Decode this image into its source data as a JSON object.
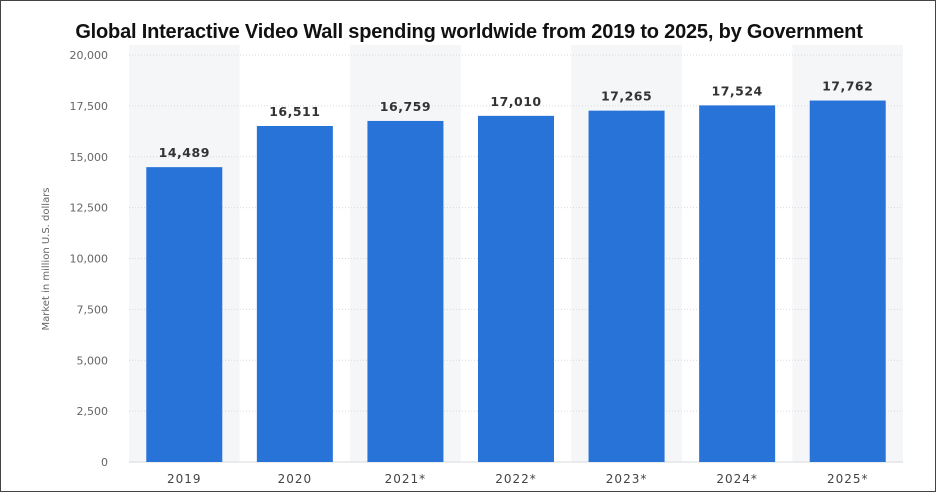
{
  "chart_data": {
    "type": "bar",
    "title": "Global Interactive Video Wall spending worldwide from 2019 to 2025, by Government",
    "categories": [
      "2019",
      "2020",
      "2021*",
      "2022*",
      "2023*",
      "2024*",
      "2025*"
    ],
    "values": [
      14489,
      16511,
      16759,
      17010,
      17265,
      17524,
      17762
    ],
    "value_labels": [
      "14,489",
      "16,511",
      "16,759",
      "17,010",
      "17,265",
      "17,524",
      "17,762"
    ],
    "xlabel": "",
    "ylabel": "Market in million U.S. dollars",
    "ylim": [
      0,
      20000
    ],
    "yticks": [
      0,
      2500,
      5000,
      7500,
      10000,
      12500,
      15000,
      17500,
      20000
    ],
    "ytick_labels": [
      "0",
      "2,500",
      "5,000",
      "7,500",
      "10,000",
      "12,500",
      "15,000",
      "17,500",
      "20,000"
    ],
    "grid": true,
    "bar_color": "#2873d8",
    "band_color": "#f5f6f8",
    "grid_color": "#d7d9dd"
  }
}
